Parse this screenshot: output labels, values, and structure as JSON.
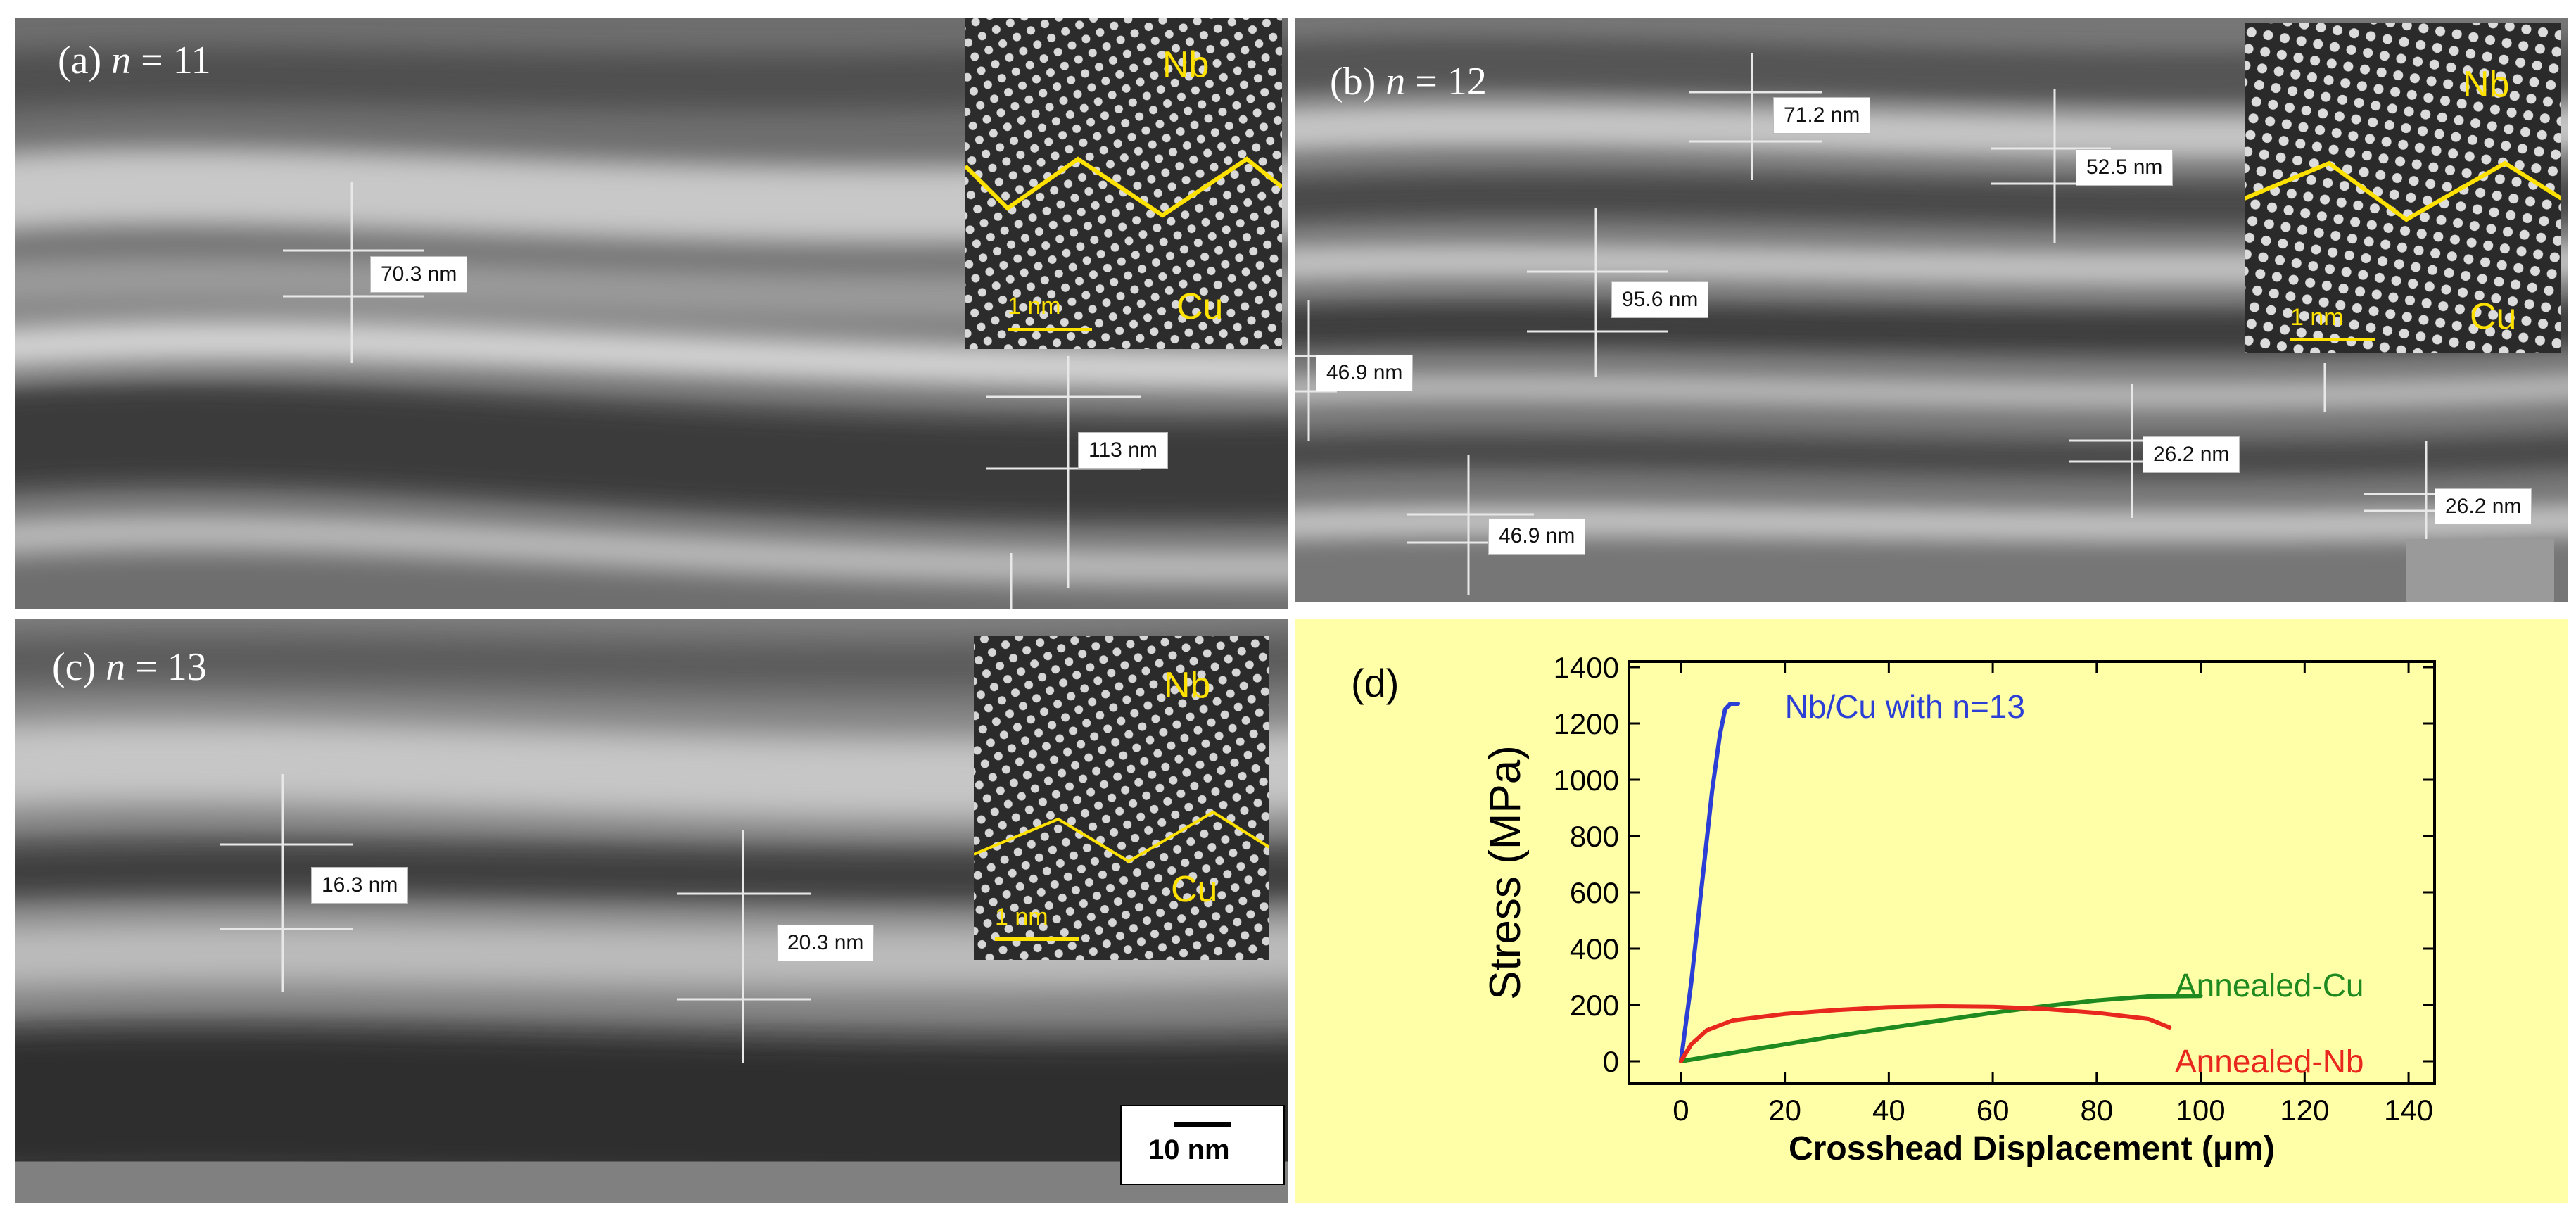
{
  "panels": {
    "a": {
      "label_prefix": "(a) ",
      "label_n": "n",
      "label_suffix": " = 11",
      "measurements": [
        "70.3 nm",
        "113 nm"
      ],
      "inset": {
        "top": "Nb",
        "bottom": "Cu",
        "scale": "1 nm"
      }
    },
    "b": {
      "label_prefix": "(b) ",
      "label_n": "n",
      "label_suffix": " = 12",
      "measurements": [
        "71.2 nm",
        "52.5 nm",
        "95.6 nm",
        "46.9 nm",
        "26.2 nm",
        "46.9 nm",
        "26.2 nm"
      ],
      "inset": {
        "top": "Nb",
        "bottom": "Cu",
        "scale": "1 nm"
      }
    },
    "c": {
      "label_prefix": "(c) ",
      "label_n": "n",
      "label_suffix": " = 13",
      "measurements": [
        "16.3 nm",
        "20.3 nm"
      ],
      "inset": {
        "top": "Nb",
        "bottom": "Cu",
        "scale": "1 nm"
      },
      "scale_bar": "10 nm"
    },
    "d": {
      "label": "(d)"
    }
  },
  "chart_data": {
    "type": "line",
    "xlabel": "Crosshead Displacement (μm)",
    "ylabel": "Stress (MPa)",
    "xlim": [
      -10,
      145
    ],
    "ylim": [
      -80,
      1420
    ],
    "xticks": [
      0,
      20,
      40,
      60,
      80,
      100,
      120,
      140
    ],
    "yticks": [
      0,
      200,
      400,
      600,
      800,
      1000,
      1200,
      1400
    ],
    "series": [
      {
        "name": "Nb/Cu with n=13",
        "color": "#2b3fd6",
        "x": [
          0,
          2,
          4,
          6,
          7.5,
          8.5,
          9.5,
          11
        ],
        "y": [
          0,
          280,
          620,
          960,
          1160,
          1250,
          1270,
          1270
        ]
      },
      {
        "name": "Annealed-Cu",
        "color": "#1f8a1f",
        "x": [
          0,
          10,
          20,
          30,
          40,
          50,
          60,
          70,
          80,
          90,
          100
        ],
        "y": [
          0,
          30,
          60,
          90,
          118,
          145,
          172,
          196,
          216,
          230,
          232
        ]
      },
      {
        "name": "Annealed-Nb",
        "color": "#e8281e",
        "x": [
          0,
          2,
          5,
          10,
          20,
          30,
          40,
          50,
          60,
          70,
          80,
          90,
          94
        ],
        "y": [
          0,
          60,
          110,
          145,
          168,
          182,
          192,
          195,
          193,
          186,
          172,
          150,
          120
        ]
      }
    ]
  }
}
